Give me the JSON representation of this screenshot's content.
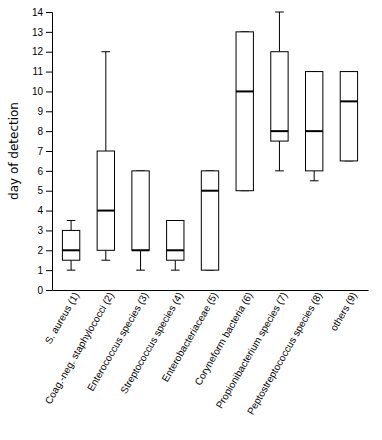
{
  "chart_data": {
    "type": "box",
    "ylabel": "day of detection",
    "ylim": [
      0,
      14
    ],
    "yticks": [
      0,
      1,
      2,
      3,
      4,
      5,
      6,
      7,
      8,
      9,
      10,
      11,
      12,
      13,
      14
    ],
    "categories": [
      "S. aureus (1)",
      "Coag.-neg. staphylococci (2)",
      "Enterococcus species (3)",
      "Streptococcus species (4)",
      "Enterobacteriaceae (5)",
      "Coryneform bacteria (6)",
      "Propionibacterium species (7)",
      "Peptostreptococcus species (8)",
      "others (9)"
    ],
    "boxes": [
      {
        "whislo": 1.0,
        "q1": 1.5,
        "med": 2.0,
        "q3": 3.0,
        "whishi": 3.5
      },
      {
        "whislo": 1.5,
        "q1": 2.0,
        "med": 4.0,
        "q3": 7.0,
        "whishi": 12.0
      },
      {
        "whislo": 1.0,
        "q1": 2.0,
        "med": 2.0,
        "q3": 6.0,
        "whishi": 6.0
      },
      {
        "whislo": 1.0,
        "q1": 1.5,
        "med": 2.0,
        "q3": 3.5,
        "whishi": 3.5
      },
      {
        "whislo": 1.0,
        "q1": 1.0,
        "med": 5.0,
        "q3": 6.0,
        "whishi": 6.0
      },
      {
        "whislo": 5.0,
        "q1": 5.0,
        "med": 10.0,
        "q3": 13.0,
        "whishi": 13.0
      },
      {
        "whislo": 6.0,
        "q1": 7.5,
        "med": 8.0,
        "q3": 12.0,
        "whishi": 14.0
      },
      {
        "whislo": 5.5,
        "q1": 6.0,
        "med": 8.0,
        "q3": 11.0,
        "whishi": 11.0
      },
      {
        "whislo": 6.5,
        "q1": 6.5,
        "med": 9.5,
        "q3": 11.0,
        "whishi": 11.0
      }
    ],
    "color": "black"
  }
}
